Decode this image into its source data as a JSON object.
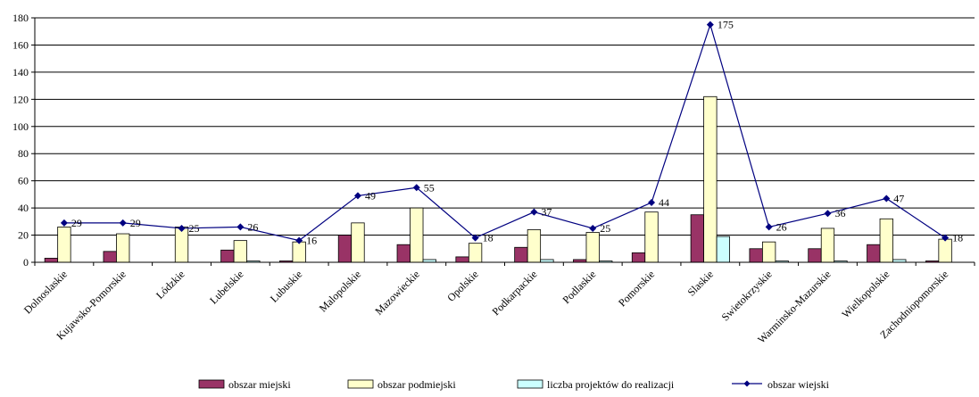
{
  "chart_data": {
    "type": "bar",
    "categories": [
      "Dolnoslaskie",
      "Kujawsko-Pomorskie",
      "Lódzkie",
      "Lubelskie",
      "Lubuskie",
      "Malopolskie",
      "Mazowieckie",
      "Opolskie",
      "Podkarpackie",
      "Podlaskie",
      "Pomorskie",
      "Slaskie",
      "Swietokrzyskie",
      "Warminsko-Mazurskie",
      "Wielkopolskie",
      "Zachodniopomorskie"
    ],
    "ylim": [
      0,
      180
    ],
    "yticks": [
      0,
      20,
      40,
      60,
      80,
      100,
      120,
      140,
      160,
      180
    ],
    "grid": true,
    "legend_position": "bottom",
    "series": [
      {
        "name": "obszar miejski",
        "type": "bar",
        "color": "#993366",
        "values": [
          3,
          8,
          0,
          9,
          1,
          20,
          13,
          4,
          11,
          2,
          7,
          35,
          10,
          10,
          13,
          1
        ]
      },
      {
        "name": "obszar podmiejski",
        "type": "bar",
        "color": "#ffffcc",
        "values": [
          26,
          21,
          26,
          16,
          15,
          29,
          40,
          14,
          24,
          22,
          37,
          122,
          15,
          25,
          32,
          17
        ]
      },
      {
        "name": "liczba projektów do realizacji",
        "type": "bar",
        "color": "#ccffff",
        "values": [
          0,
          0,
          0,
          1,
          0,
          0,
          2,
          0,
          2,
          1,
          0,
          19,
          1,
          1,
          2,
          0
        ]
      },
      {
        "name": "obszar wiejski",
        "type": "line",
        "color": "#000080",
        "values": [
          29,
          29,
          25,
          26,
          16,
          49,
          55,
          18,
          37,
          25,
          44,
          175,
          26,
          36,
          47,
          18
        ]
      }
    ]
  }
}
